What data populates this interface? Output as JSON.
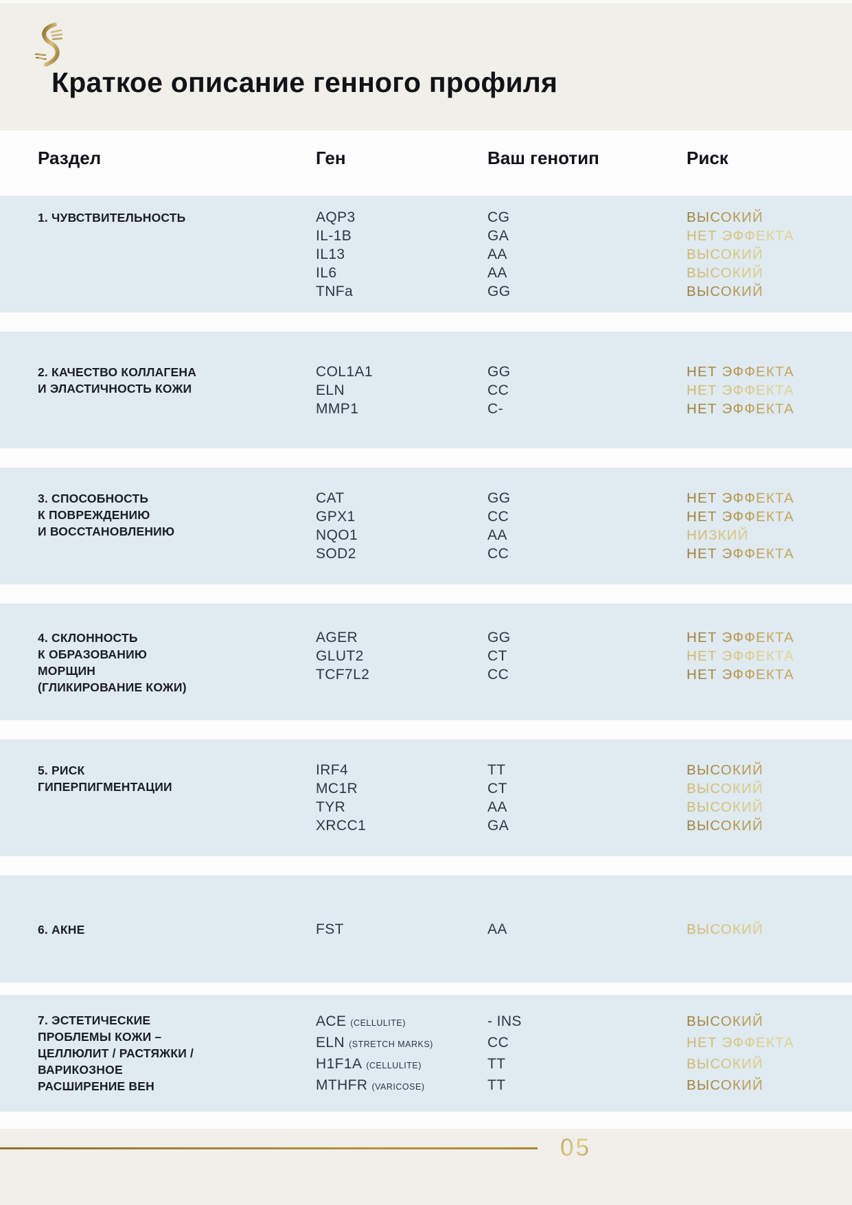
{
  "page": {
    "title": "Краткое описание генного профиля",
    "page_number": "05",
    "logo_icon": "dna-helix-icon"
  },
  "colors": {
    "header_background": "#f0efe9",
    "band_background": "#fdfdfd",
    "section_block_background": "#dfeaf1",
    "ink": "#121318",
    "gene_text": "#2d3642",
    "gold_dark": "#a5853d",
    "gold_light": "#d9c47e",
    "footer_rule_gold": "#a8892f"
  },
  "table": {
    "headers": {
      "section": "Раздел",
      "gene": "Ген",
      "genotype": "Ваш генотип",
      "risk": "Риск"
    },
    "sections": [
      {
        "title": "1. ЧУВСТВИТЕЛЬНОСТЬ",
        "rows": [
          {
            "gene": "AQP3",
            "genotype": "CG",
            "risk": "ВЫСОКИЙ",
            "tone": "dark"
          },
          {
            "gene": "IL-1B",
            "genotype": "GA",
            "risk": "НЕТ ЭФФЕКТА",
            "tone": "light"
          },
          {
            "gene": "IL13",
            "genotype": "AA",
            "risk": "ВЫСОКИЙ",
            "tone": "light"
          },
          {
            "gene": "IL6",
            "genotype": "AA",
            "risk": "ВЫСОКИЙ",
            "tone": "light"
          },
          {
            "gene": "TNFa",
            "genotype": "GG",
            "risk": "ВЫСОКИЙ",
            "tone": "dark"
          }
        ]
      },
      {
        "title": "2. КАЧЕСТВО КОЛЛАГЕНА\nИ ЭЛАСТИЧНОСТЬ КОЖИ",
        "rows": [
          {
            "gene": "COL1A1",
            "genotype": "GG",
            "risk": "НЕТ ЭФФЕКТА",
            "tone": "dark"
          },
          {
            "gene": "ELN",
            "genotype": "CC",
            "risk": "НЕТ ЭФФЕКТА",
            "tone": "light"
          },
          {
            "gene": "MMP1",
            "genotype": "C-",
            "risk": "НЕТ ЭФФЕКТА",
            "tone": "dark"
          }
        ]
      },
      {
        "title": "3. СПОСОБНОСТЬ\nК ПОВРЕЖДЕНИЮ\nИ ВОССТАНОВЛЕНИЮ",
        "rows": [
          {
            "gene": "CAT",
            "genotype": "GG",
            "risk": "НЕТ ЭФФЕКТА",
            "tone": "dark"
          },
          {
            "gene": "GPX1",
            "genotype": "CC",
            "risk": "НЕТ ЭФФЕКТА",
            "tone": "dark"
          },
          {
            "gene": "NQO1",
            "genotype": "AA",
            "risk": "НИЗКИЙ",
            "tone": "light"
          },
          {
            "gene": "SOD2",
            "genotype": "CC",
            "risk": "НЕТ ЭФФЕКТА",
            "tone": "dark"
          }
        ]
      },
      {
        "title": "4. СКЛОННОСТЬ\nК ОБРАЗОВАНИЮ\nМОРЩИН\n(ГЛИКИРОВАНИЕ КОЖИ)",
        "rows": [
          {
            "gene": "AGER",
            "genotype": "GG",
            "risk": "НЕТ ЭФФЕКТА",
            "tone": "dark"
          },
          {
            "gene": "GLUT2",
            "genotype": "CT",
            "risk": "НЕТ ЭФФЕКТА",
            "tone": "light"
          },
          {
            "gene": "TCF7L2",
            "genotype": "CC",
            "risk": "НЕТ ЭФФЕКТА",
            "tone": "dark"
          }
        ]
      },
      {
        "title": "5. РИСК\nГИПЕРПИГМЕНТАЦИИ",
        "rows": [
          {
            "gene": "IRF4",
            "genotype": "TT",
            "risk": "ВЫСОКИЙ",
            "tone": "dark"
          },
          {
            "gene": "MC1R",
            "genotype": "CT",
            "risk": "ВЫСОКИЙ",
            "tone": "light"
          },
          {
            "gene": "TYR",
            "genotype": "AA",
            "risk": "ВЫСОКИЙ",
            "tone": "light"
          },
          {
            "gene": "XRCC1",
            "genotype": "GA",
            "risk": "ВЫСОКИЙ",
            "tone": "dark"
          }
        ]
      },
      {
        "title": "6. АКНЕ",
        "rows": [
          {
            "gene": "FST",
            "genotype": "AA",
            "risk": "ВЫСОКИЙ",
            "tone": "light"
          }
        ]
      },
      {
        "title": "7. ЭСТЕТИЧЕСКИЕ\nПРОБЛЕМЫ КОЖИ –\nЦЕЛЛЮЛИТ / РАСТЯЖКИ /\nВАРИКОЗНОЕ\nРАСШИРЕНИЕ ВЕН",
        "rows": [
          {
            "gene": "ACE",
            "sub": "(CELLULITE)",
            "genotype": "- INS",
            "risk": "ВЫСОКИЙ",
            "tone": "dark"
          },
          {
            "gene": "ELN",
            "sub": "(STRETCH MARKS)",
            "genotype": "CC",
            "risk": "НЕТ ЭФФЕКТА",
            "tone": "light"
          },
          {
            "gene": "H1F1A",
            "sub": "(CELLULITE)",
            "genotype": "TT",
            "risk": "ВЫСОКИЙ",
            "tone": "light"
          },
          {
            "gene": "MTHFR",
            "sub": "(VARICOSE)",
            "genotype": "TT",
            "risk": "ВЫСОКИЙ",
            "tone": "dark"
          }
        ]
      }
    ]
  }
}
